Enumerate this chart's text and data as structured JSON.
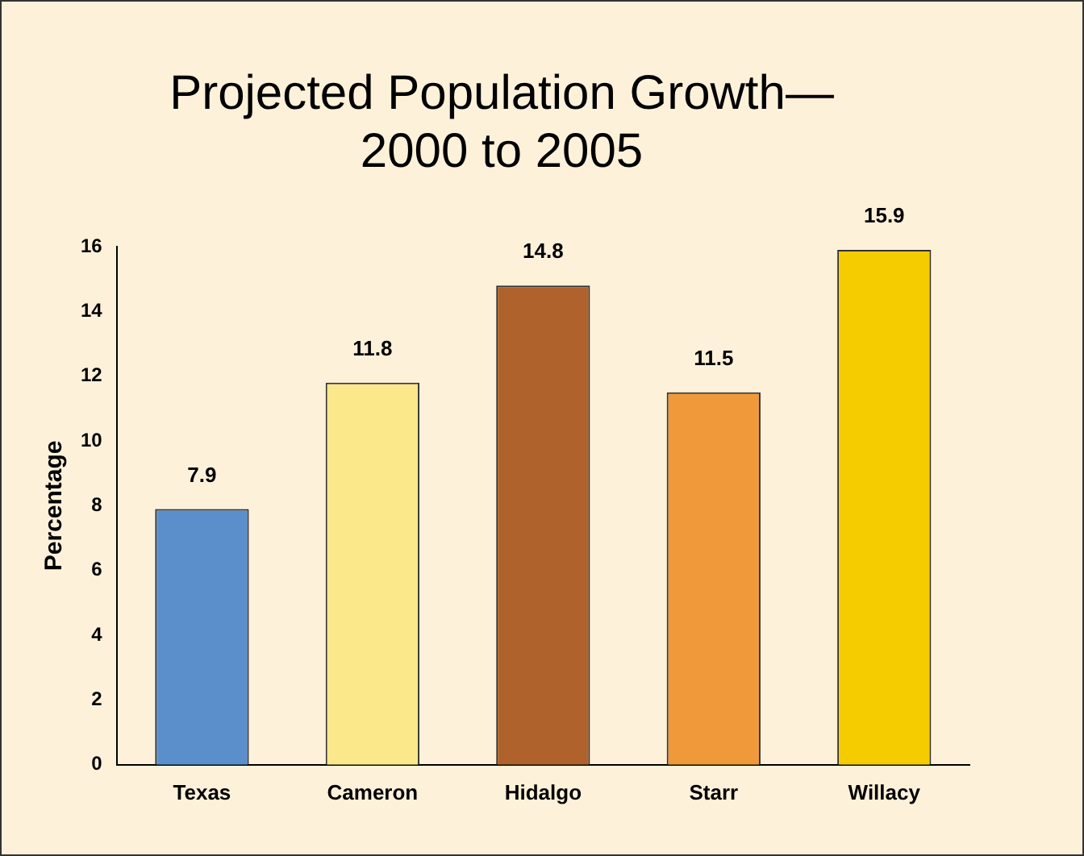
{
  "chart_data": {
    "type": "bar",
    "title": "Projected Population Growth—\n2000 to 2005",
    "ylabel": "Percentage",
    "categories": [
      "Texas",
      "Cameron",
      "Hidalgo",
      "Starr",
      "Willacy"
    ],
    "values": [
      7.9,
      11.8,
      14.8,
      11.5,
      15.9
    ],
    "colors": [
      "#5b8fcb",
      "#fbe88a",
      "#b0622c",
      "#f0993a",
      "#f5cc00"
    ],
    "ylim": [
      0,
      16
    ],
    "yticks": [
      0,
      2,
      4,
      6,
      8,
      10,
      12,
      14,
      16
    ],
    "grid": false,
    "legend": false,
    "data_labels": true
  }
}
